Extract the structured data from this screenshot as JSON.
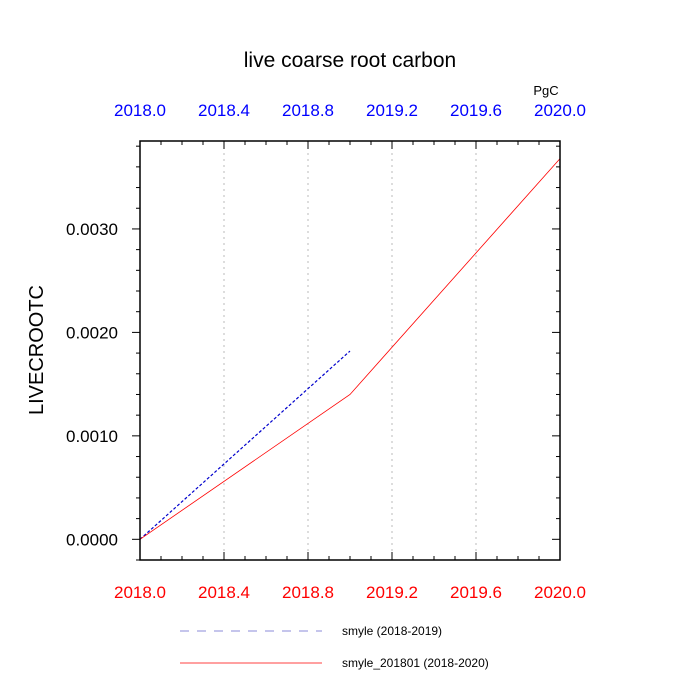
{
  "chart_data": {
    "type": "line",
    "title": "live coarse root carbon",
    "ylabel": "LIVECROOTC",
    "units": "PgC",
    "xlim": [
      2018.0,
      2020.0
    ],
    "ylim": [
      -0.0002,
      0.00385
    ],
    "x_ticks": [
      "2018.0",
      "2018.4",
      "2018.8",
      "2019.2",
      "2019.6",
      "2020.0"
    ],
    "x_tick_values": [
      2018.0,
      2018.4,
      2018.8,
      2019.2,
      2019.6,
      2020.0
    ],
    "y_ticks": [
      "0.0000",
      "0.0010",
      "0.0020",
      "0.0030"
    ],
    "y_tick_values": [
      0.0,
      0.001,
      0.002,
      0.003
    ],
    "grid": "vertical dotted",
    "legend_position": "bottom",
    "colors": {
      "top_axis_labels": "#0000ff",
      "bottom_axis_labels": "#ff0000"
    },
    "series": [
      {
        "name": "smyle (2018-2019)",
        "color": "#0000cc",
        "dash": "dashed",
        "x": [
          2018.0,
          2019.0
        ],
        "y": [
          0.0,
          0.00182
        ]
      },
      {
        "name": "smyle_201801 (2018-2020)",
        "color": "#ff0000",
        "dash": "solid",
        "x": [
          2018.0,
          2019.0,
          2020.0
        ],
        "y": [
          0.0,
          0.0014,
          0.00368
        ]
      }
    ]
  }
}
